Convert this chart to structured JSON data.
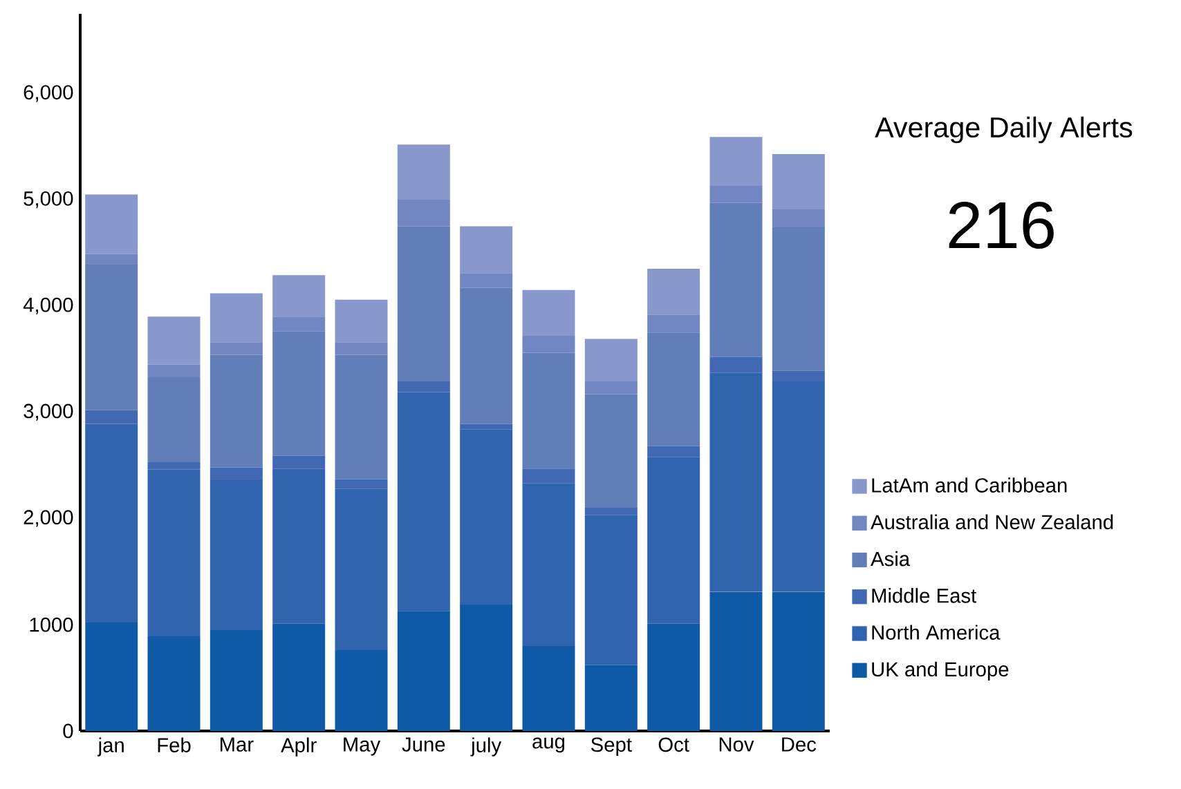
{
  "chart_data": {
    "type": "bar",
    "stacked": true,
    "title": "Average Daily Alerts",
    "annotations": [
      "216"
    ],
    "categories": [
      "jan",
      "Feb",
      "Mar",
      "Aplr",
      "May",
      "June",
      "july",
      "aug",
      "Sept",
      "Oct",
      "Nov",
      "Dec"
    ],
    "series": [
      {
        "name": "UK and Europe",
        "color": "#0f5aa6",
        "values": [
          1020,
          890,
          950,
          1010,
          760,
          1130,
          1190,
          800,
          620,
          1010,
          1310,
          1310
        ]
      },
      {
        "name": "North America",
        "color": "#3164ae",
        "values": [
          1870,
          1570,
          1410,
          1460,
          1520,
          2060,
          1650,
          1530,
          1410,
          1570,
          2060,
          1980
        ]
      },
      {
        "name": "Middle East",
        "color": "#4068b3",
        "values": [
          130,
          70,
          120,
          120,
          90,
          100,
          50,
          140,
          70,
          100,
          150,
          100
        ]
      },
      {
        "name": "Asia",
        "color": "#617eb9",
        "values": [
          1370,
          800,
          1060,
          1170,
          1170,
          1460,
          1280,
          1090,
          1070,
          1070,
          1450,
          1350
        ]
      },
      {
        "name": "Australia and New Zealand",
        "color": "#7286c2",
        "values": [
          100,
          120,
          120,
          140,
          120,
          250,
          140,
          160,
          120,
          170,
          160,
          170
        ]
      },
      {
        "name": "LatAm and Caribbean",
        "color": "#8898cc",
        "values": [
          560,
          450,
          460,
          390,
          400,
          520,
          440,
          430,
          400,
          430,
          460,
          520
        ]
      }
    ],
    "ylim": [
      0,
      6750
    ],
    "yticks": [
      0,
      1000,
      {
        "value": 2000,
        "label": "2,000"
      },
      {
        "value": 3000,
        "label": "3,000"
      },
      {
        "value": 4000,
        "label": "4,000"
      },
      {
        "value": 5000,
        "label": "5,000"
      },
      {
        "value": 6000,
        "label": "6,000"
      }
    ],
    "grid": false,
    "legend": "right"
  }
}
